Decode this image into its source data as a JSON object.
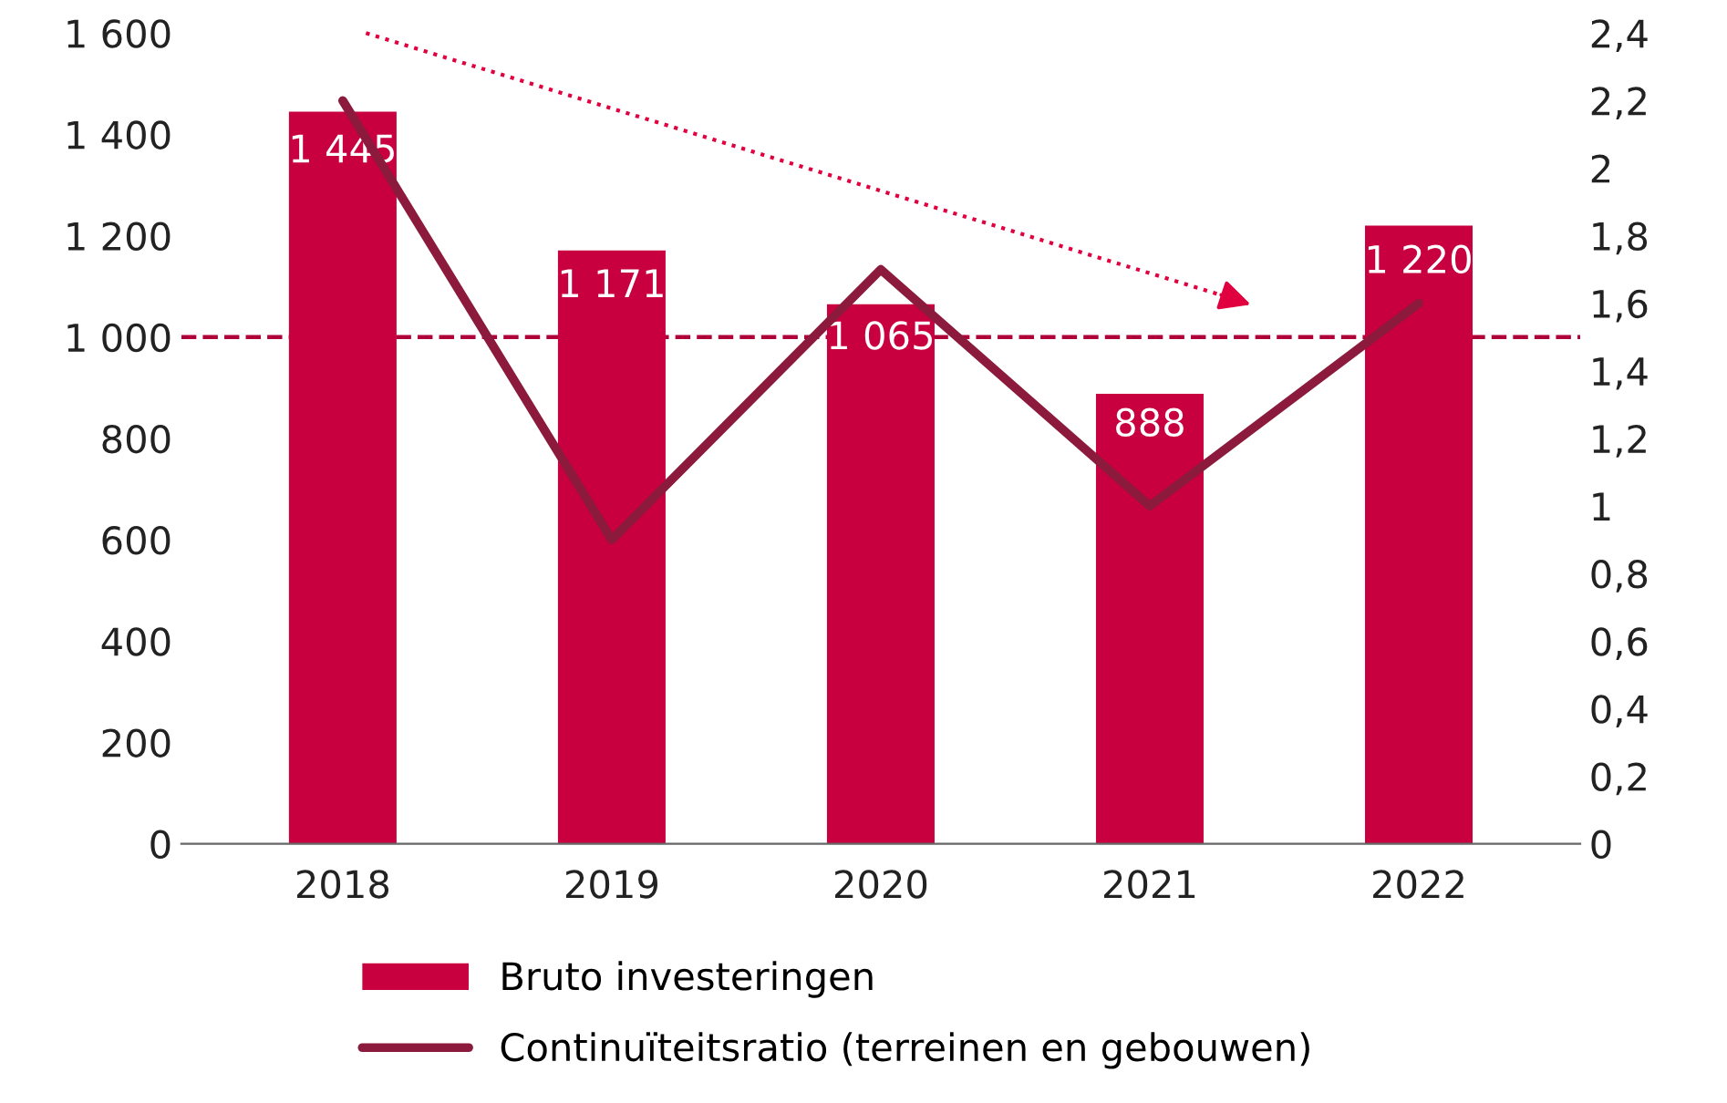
{
  "chart_data": {
    "type": "bar",
    "categories": [
      "2018",
      "2019",
      "2020",
      "2021",
      "2022"
    ],
    "series": [
      {
        "name": "Bruto investeringen",
        "color": "#c8003f",
        "values": [
          1445,
          1171,
          1065,
          888,
          1220
        ],
        "value_labels": [
          "1 445",
          "1 171",
          "1 065",
          "888",
          "1 220"
        ]
      },
      {
        "name": "Continuïteitsratio (terreinen en gebouwen)",
        "type": "line",
        "axis": "y2",
        "color": "#8c1a3c",
        "values": [
          2.2,
          0.9,
          1.7,
          1.0,
          1.6
        ]
      }
    ],
    "ylim": [
      0,
      1600
    ],
    "yticks": [
      0,
      200,
      400,
      600,
      800,
      {
        "value": 1000,
        "label": "1 000"
      },
      {
        "value": 1200,
        "label": "1 200"
      },
      {
        "value": 1400,
        "label": "1 400"
      },
      {
        "value": 1600,
        "label": "1 600"
      }
    ],
    "y2lim": [
      0,
      2.4
    ],
    "y2ticks": [
      0,
      {
        "value": 0.2,
        "label": "0,2"
      },
      {
        "value": 0.4,
        "label": "0,4"
      },
      {
        "value": 0.6,
        "label": "0,6"
      },
      {
        "value": 0.8,
        "label": "0,8"
      },
      1,
      {
        "value": 1.2,
        "label": "1,2"
      },
      {
        "value": 1.4,
        "label": "1,4"
      },
      {
        "value": 1.6,
        "label": "1,6"
      },
      {
        "value": 1.8,
        "label": "1,8"
      },
      2,
      {
        "value": 2.2,
        "label": "2,2"
      },
      {
        "value": 2.4,
        "label": "2,4"
      }
    ],
    "ref_lines": [
      {
        "axis": "y",
        "value": 1000,
        "color": "#b0003a",
        "line_style": "dashed"
      }
    ],
    "legend": "bottom",
    "grid": false,
    "marker": "none",
    "line_style": "solid"
  }
}
